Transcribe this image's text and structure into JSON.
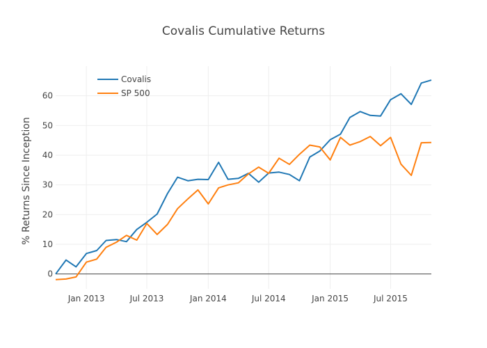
{
  "chart_data": {
    "type": "line",
    "title": "Covalis Cumulative Returns",
    "xlabel": "",
    "ylabel": "% Returns Since Inception",
    "ylim": [
      -5,
      70
    ],
    "yticks": [
      0,
      10,
      20,
      30,
      40,
      50,
      60
    ],
    "xlim": [
      "2012-10-01",
      "2015-10-31"
    ],
    "xticks": [
      {
        "date": "2013-01-01",
        "label": "Jan 2013"
      },
      {
        "date": "2013-07-01",
        "label": "Jul 2013"
      },
      {
        "date": "2014-01-01",
        "label": "Jan 2014"
      },
      {
        "date": "2014-07-01",
        "label": "Jul 2014"
      },
      {
        "date": "2015-01-01",
        "label": "Jan 2015"
      },
      {
        "date": "2015-07-01",
        "label": "Jul 2015"
      }
    ],
    "grid": true,
    "legend_position": "top-left",
    "x": [
      "2012-10-01",
      "2012-11-01",
      "2012-12-01",
      "2013-01-01",
      "2013-02-01",
      "2013-03-01",
      "2013-04-01",
      "2013-05-01",
      "2013-06-01",
      "2013-07-01",
      "2013-08-01",
      "2013-09-01",
      "2013-10-01",
      "2013-11-01",
      "2013-12-01",
      "2014-01-01",
      "2014-02-01",
      "2014-03-01",
      "2014-04-01",
      "2014-05-01",
      "2014-06-01",
      "2014-07-01",
      "2014-08-01",
      "2014-09-01",
      "2014-10-01",
      "2014-11-01",
      "2014-12-01",
      "2015-01-01",
      "2015-02-01",
      "2015-03-01",
      "2015-04-01",
      "2015-05-01",
      "2015-06-01",
      "2015-07-01",
      "2015-08-01",
      "2015-09-01",
      "2015-10-01",
      "2015-10-31"
    ],
    "series": [
      {
        "name": "Covalis",
        "color": "#1f77b4",
        "values": [
          0,
          4.7,
          2.4,
          6.9,
          7.9,
          11.3,
          11.6,
          10.9,
          15.0,
          17.4,
          20.2,
          27.1,
          32.6,
          31.4,
          31.9,
          31.8,
          37.6,
          31.9,
          32.2,
          33.9,
          30.9,
          34.0,
          34.3,
          33.5,
          31.4,
          39.4,
          41.4,
          45.2,
          47.1,
          52.7,
          54.7,
          53.4,
          53.2,
          58.7,
          60.7,
          57.1,
          64.3,
          65.3
        ]
      },
      {
        "name": "SP 500",
        "color": "#ff7f0e",
        "values": [
          -1.9,
          -1.7,
          -1.0,
          4.0,
          5.0,
          9.0,
          10.7,
          13.0,
          11.4,
          17.0,
          13.3,
          16.7,
          22.0,
          25.3,
          28.3,
          23.6,
          29.0,
          30.0,
          30.7,
          33.7,
          36.0,
          33.9,
          39.0,
          36.9,
          40.3,
          43.4,
          42.8,
          38.4,
          46.0,
          43.4,
          44.6,
          46.3,
          43.2,
          46.0,
          37.0,
          33.2,
          44.2,
          44.3
        ]
      }
    ]
  }
}
